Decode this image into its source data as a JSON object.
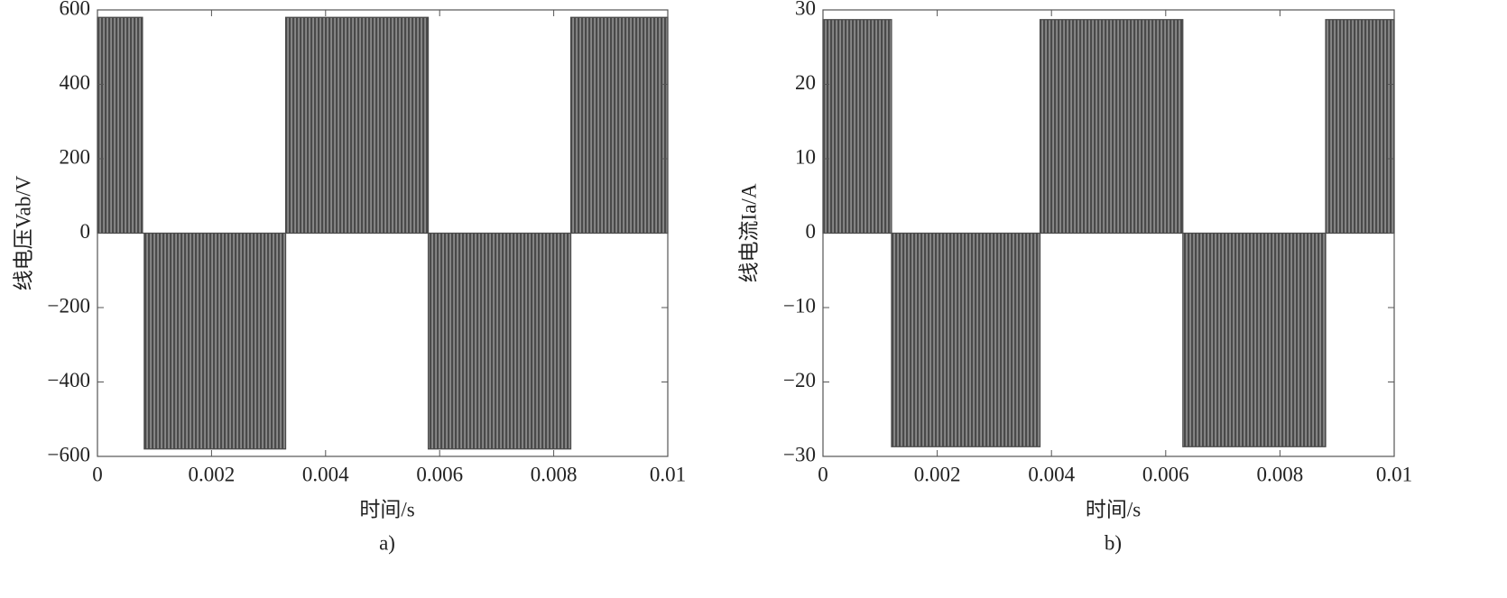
{
  "chart_data": [
    {
      "type": "line",
      "ylabel": "线电压Vab/V",
      "xlabel": "时间/s",
      "caption": "a)",
      "color": "#4a4a4a",
      "x": [
        0,
        0,
        0.00079,
        0.00079,
        0.00082,
        0.00082,
        0.0033,
        0.0033,
        0.0058,
        0.0058,
        0.0083,
        0.0083,
        0.01,
        0.01
      ],
      "values": [
        0,
        580,
        580,
        0,
        0,
        -580,
        -580,
        580,
        580,
        -580,
        -580,
        580,
        580,
        0
      ],
      "xlim": [
        0,
        0.01
      ],
      "ylim": [
        -600,
        600
      ],
      "xticks": [
        0,
        0.002,
        0.004,
        0.006,
        0.008,
        0.01
      ],
      "yticks": [
        {
          "value": -600,
          "label": "−600"
        },
        {
          "value": -400,
          "label": "−400"
        },
        {
          "value": -200,
          "label": "−200"
        },
        0,
        200,
        400,
        600
      ]
    },
    {
      "type": "line",
      "ylabel": "线电流Ia/A",
      "xlabel": "时间/s",
      "caption": "b)",
      "color": "#4a4a4a",
      "x": [
        0,
        0,
        0.0012,
        0.0012,
        0.0038,
        0.0038,
        0.0063,
        0.0063,
        0.0088,
        0.0088,
        0.01,
        0.01
      ],
      "values": [
        0,
        28.7,
        28.7,
        -28.7,
        -28.7,
        28.7,
        28.7,
        -28.7,
        -28.7,
        28.7,
        28.7,
        0
      ],
      "xlim": [
        0,
        0.01
      ],
      "ylim": [
        -30,
        30
      ],
      "xticks": [
        0,
        0.002,
        0.004,
        0.006,
        0.008,
        0.01
      ],
      "yticks": [
        {
          "value": -30,
          "label": "−30"
        },
        {
          "value": -20,
          "label": "−20"
        },
        {
          "value": -10,
          "label": "−10"
        },
        0,
        10,
        20,
        30
      ]
    }
  ]
}
